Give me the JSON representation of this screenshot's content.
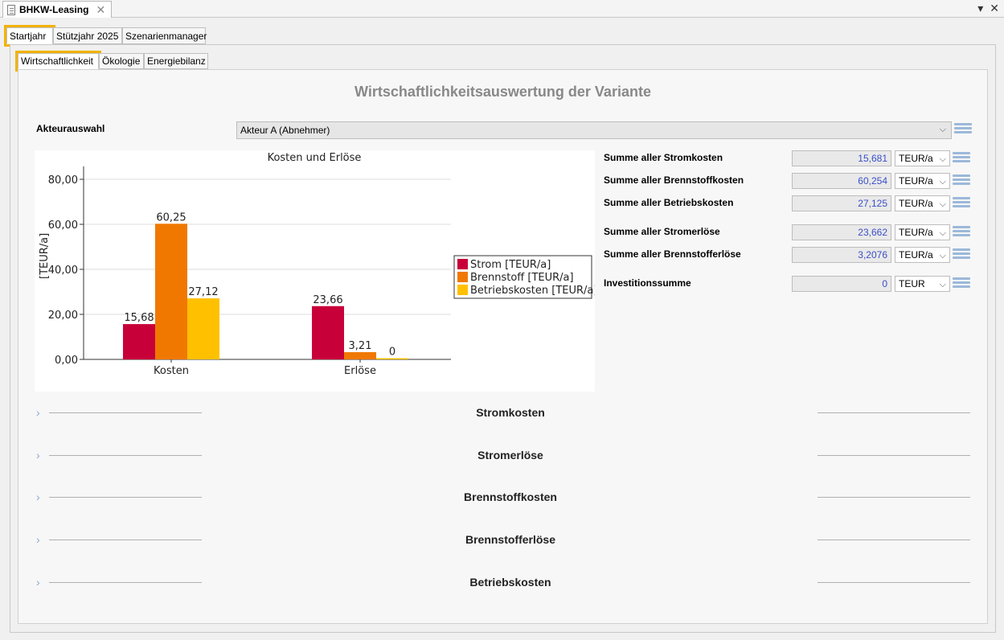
{
  "window": {
    "doc_title": "BHKW-Leasing"
  },
  "tabs_level1": [
    {
      "label": "Startjahr"
    },
    {
      "label": "Stützjahr 2025"
    },
    {
      "label": "Szenarienmanager"
    }
  ],
  "tabs_level2": [
    {
      "label": "Wirtschaftlichkeit"
    },
    {
      "label": "Ökologie"
    },
    {
      "label": "Energiebilanz"
    }
  ],
  "page_title": "Wirtschaftlichkeitsauswertung der Variante",
  "akteur": {
    "label": "Akteurauswahl",
    "selected": "Akteur A (Abnehmer)"
  },
  "summary": [
    {
      "label": "Summe aller Stromkosten",
      "value": "15,681",
      "unit": "TEUR/a"
    },
    {
      "label": "Summe aller Brennstoffkosten",
      "value": "60,254",
      "unit": "TEUR/a"
    },
    {
      "label": "Summe aller Betriebskosten",
      "value": "27,125",
      "unit": "TEUR/a"
    },
    {
      "label": "Summe aller Stromerlöse",
      "value": "23,662",
      "unit": "TEUR/a"
    },
    {
      "label": "Summe aller Brennstofferlöse",
      "value": "3,2076",
      "unit": "TEUR/a"
    },
    {
      "label": "Investitionssumme",
      "value": "0",
      "unit": "TEUR"
    }
  ],
  "sections": [
    {
      "title": "Stromkosten"
    },
    {
      "title": "Stromerlöse"
    },
    {
      "title": "Brennstoffkosten"
    },
    {
      "title": "Brennstofferlöse"
    },
    {
      "title": "Betriebskosten"
    }
  ],
  "colors": {
    "strom": "#c8003a",
    "brennstoff": "#f07800",
    "betrieb": "#ffc000",
    "highlight": "#f2b300"
  },
  "chart_data": {
    "type": "bar",
    "title": "Kosten und Erlöse",
    "xlabel": "",
    "ylabel": "[TEUR/a]",
    "ylim": [
      0,
      85
    ],
    "yticks": [
      "0,00",
      "20,00",
      "40,00",
      "60,00",
      "80,00"
    ],
    "ytick_values": [
      0,
      20,
      40,
      60,
      80
    ],
    "categories": [
      "Kosten",
      "Erlöse"
    ],
    "legend_position": "right",
    "grid": true,
    "series": [
      {
        "name": "Strom [TEUR/a]",
        "values": [
          15.68,
          23.66
        ],
        "labels": [
          "15,68",
          "23,66"
        ]
      },
      {
        "name": "Brennstoff [TEUR/a]",
        "values": [
          60.25,
          3.21
        ],
        "labels": [
          "60,25",
          "3,21"
        ]
      },
      {
        "name": "Betriebskosten [TEUR/a]",
        "values": [
          27.12,
          0
        ],
        "labels": [
          "27,12",
          "0"
        ]
      }
    ]
  }
}
